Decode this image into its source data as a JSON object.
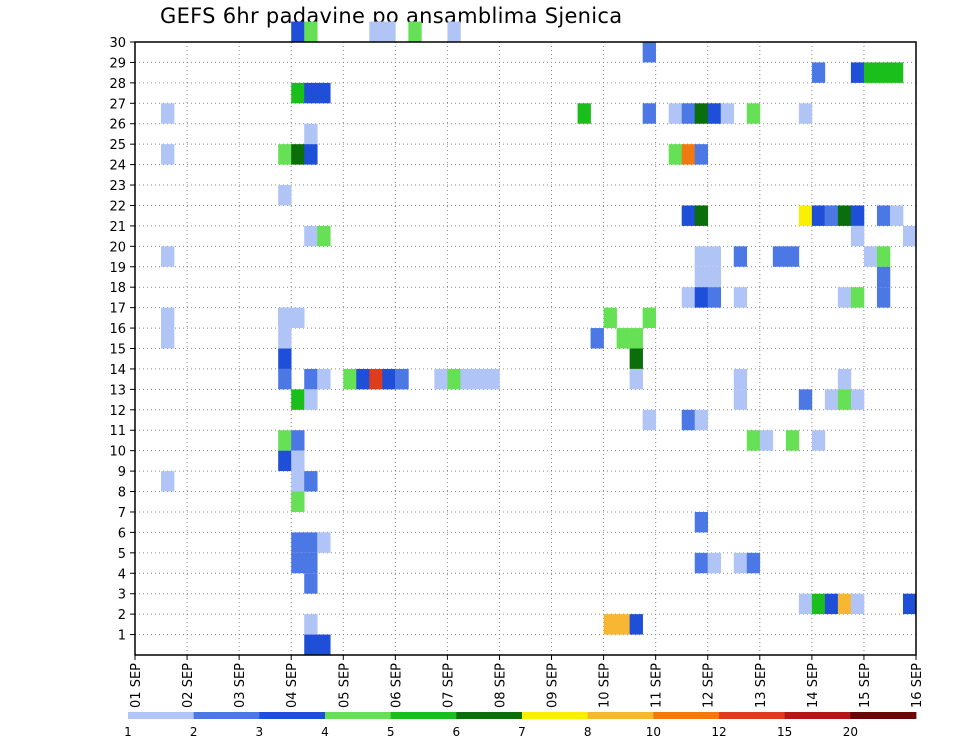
{
  "title": "GEFS 6hr padavine po ansamblima Sjenica",
  "chart_data": {
    "type": "heatmap",
    "title": "GEFS 6hr padavine po ansamblima Sjenica",
    "xlabel": "",
    "ylabel": "",
    "x_tick_labels": [
      "01 SEP",
      "02 SEP",
      "03 SEP",
      "04 SEP",
      "05 SEP",
      "06 SEP",
      "07 SEP",
      "08 SEP",
      "09 SEP",
      "10 SEP",
      "11 SEP",
      "12 SEP",
      "13 SEP",
      "14 SEP",
      "15 SEP",
      "16 SEP"
    ],
    "y_tick_labels": [
      "1",
      "2",
      "3",
      "4",
      "5",
      "6",
      "7",
      "8",
      "9",
      "10",
      "11",
      "12",
      "13",
      "14",
      "15",
      "16",
      "17",
      "18",
      "19",
      "20",
      "21",
      "22",
      "23",
      "24",
      "25",
      "26",
      "27",
      "28",
      "29",
      "30"
    ],
    "ylim": [
      0,
      30
    ],
    "grid": true,
    "time_step_hours": 6,
    "colorbar": {
      "labels": [
        "1",
        "2",
        "3",
        "4",
        "5",
        "6",
        "7",
        "8",
        "10",
        "12",
        "15",
        "20"
      ],
      "colors": [
        "#b0c4f5",
        "#4c78e6",
        "#1f4fd8",
        "#66e055",
        "#1bbf1b",
        "#0a6e0a",
        "#f8f000",
        "#f7b733",
        "#f07a10",
        "#dd3d1c",
        "#b21818",
        "#6a0606"
      ]
    },
    "cells": [
      {
        "member": 30,
        "day": 4,
        "step": 0,
        "c": 2
      },
      {
        "member": 30,
        "day": 4,
        "step": 1,
        "c": 3
      },
      {
        "member": 30,
        "day": 5,
        "step": 2,
        "c": 0
      },
      {
        "member": 30,
        "day": 5,
        "step": 3,
        "c": 0
      },
      {
        "member": 30,
        "day": 6,
        "step": 1,
        "c": 3
      },
      {
        "member": 30,
        "day": 7,
        "step": 0,
        "c": 0
      },
      {
        "member": 29,
        "day": 10,
        "step": 3,
        "c": 1
      },
      {
        "member": 28,
        "day": 14,
        "step": 3,
        "c": 0
      },
      {
        "member": 28,
        "day": 14,
        "step": 0,
        "c": 1
      },
      {
        "member": 28,
        "day": 14,
        "step": 3,
        "c": 2
      },
      {
        "member": 28,
        "day": 15,
        "step": 0,
        "c": 4
      },
      {
        "member": 28,
        "day": 15,
        "step": 1,
        "c": 4
      },
      {
        "member": 28,
        "day": 15,
        "step": 2,
        "c": 4
      },
      {
        "member": 27,
        "day": 4,
        "step": 0,
        "c": 4
      },
      {
        "member": 27,
        "day": 4,
        "step": 1,
        "c": 2
      },
      {
        "member": 27,
        "day": 4,
        "step": 2,
        "c": 2
      },
      {
        "member": 26,
        "day": 1,
        "step": 2,
        "c": 0
      },
      {
        "member": 26,
        "day": 9,
        "step": 2,
        "c": 4
      },
      {
        "member": 26,
        "day": 10,
        "step": 3,
        "c": 1
      },
      {
        "member": 26,
        "day": 11,
        "step": 1,
        "c": 0
      },
      {
        "member": 26,
        "day": 11,
        "step": 2,
        "c": 1
      },
      {
        "member": 26,
        "day": 11,
        "step": 3,
        "c": 5
      },
      {
        "member": 26,
        "day": 12,
        "step": 0,
        "c": 2
      },
      {
        "member": 26,
        "day": 12,
        "step": 1,
        "c": 0
      },
      {
        "member": 26,
        "day": 12,
        "step": 3,
        "c": 3
      },
      {
        "member": 26,
        "day": 13,
        "step": 3,
        "c": 0
      },
      {
        "member": 25,
        "day": 4,
        "step": 1,
        "c": 0
      },
      {
        "member": 24,
        "day": 1,
        "step": 2,
        "c": 0
      },
      {
        "member": 24,
        "day": 3,
        "step": 3,
        "c": 3
      },
      {
        "member": 24,
        "day": 4,
        "step": 0,
        "c": 5
      },
      {
        "member": 24,
        "day": 4,
        "step": 1,
        "c": 2
      },
      {
        "member": 24,
        "day": 11,
        "step": 1,
        "c": 3
      },
      {
        "member": 24,
        "day": 11,
        "step": 2,
        "c": 8
      },
      {
        "member": 24,
        "day": 11,
        "step": 3,
        "c": 1
      },
      {
        "member": 22,
        "day": 3,
        "step": 3,
        "c": 0
      },
      {
        "member": 21,
        "day": 11,
        "step": 2,
        "c": 2
      },
      {
        "member": 21,
        "day": 11,
        "step": 3,
        "c": 5
      },
      {
        "member": 21,
        "day": 13,
        "step": 3,
        "c": 6
      },
      {
        "member": 21,
        "day": 14,
        "step": 0,
        "c": 2
      },
      {
        "member": 21,
        "day": 14,
        "step": 1,
        "c": 0
      },
      {
        "member": 21,
        "day": 14,
        "step": 1,
        "c": 1
      },
      {
        "member": 21,
        "day": 14,
        "step": 2,
        "c": 5
      },
      {
        "member": 21,
        "day": 14,
        "step": 3,
        "c": 2
      },
      {
        "member": 21,
        "day": 15,
        "step": 1,
        "c": 1
      },
      {
        "member": 21,
        "day": 15,
        "step": 2,
        "c": 0
      },
      {
        "member": 20,
        "day": 4,
        "step": 1,
        "c": 0
      },
      {
        "member": 20,
        "day": 4,
        "step": 2,
        "c": 3
      },
      {
        "member": 20,
        "day": 14,
        "step": 3,
        "c": 0
      },
      {
        "member": 20,
        "day": 15,
        "step": 3,
        "c": 0
      },
      {
        "member": 19,
        "day": 1,
        "step": 2,
        "c": 0
      },
      {
        "member": 19,
        "day": 11,
        "step": 3,
        "c": 0
      },
      {
        "member": 19,
        "day": 12,
        "step": 0,
        "c": 0
      },
      {
        "member": 19,
        "day": 12,
        "step": 2,
        "c": 1
      },
      {
        "member": 19,
        "day": 13,
        "step": 1,
        "c": 1
      },
      {
        "member": 19,
        "day": 13,
        "step": 2,
        "c": 1
      },
      {
        "member": 19,
        "day": 15,
        "step": 0,
        "c": 0
      },
      {
        "member": 19,
        "day": 15,
        "step": 1,
        "c": 3
      },
      {
        "member": 18,
        "day": 11,
        "step": 3,
        "c": 0
      },
      {
        "member": 18,
        "day": 12,
        "step": 0,
        "c": 0
      },
      {
        "member": 18,
        "day": 15,
        "step": 1,
        "c": 1
      },
      {
        "member": 17,
        "day": 11,
        "step": 2,
        "c": 0
      },
      {
        "member": 17,
        "day": 11,
        "step": 3,
        "c": 2
      },
      {
        "member": 17,
        "day": 12,
        "step": 0,
        "c": 1
      },
      {
        "member": 17,
        "day": 12,
        "step": 2,
        "c": 0
      },
      {
        "member": 17,
        "day": 14,
        "step": 2,
        "c": 0
      },
      {
        "member": 17,
        "day": 14,
        "step": 3,
        "c": 3
      },
      {
        "member": 17,
        "day": 15,
        "step": 1,
        "c": 1
      },
      {
        "member": 16,
        "day": 1,
        "step": 2,
        "c": 0
      },
      {
        "member": 16,
        "day": 3,
        "step": 3,
        "c": 3
      },
      {
        "member": 16,
        "day": 4,
        "step": 0,
        "c": 0
      },
      {
        "member": 16,
        "day": 3,
        "step": 3,
        "c": 0
      },
      {
        "member": 16,
        "day": 10,
        "step": 3,
        "c": 3
      },
      {
        "member": 16,
        "day": 10,
        "step": 0,
        "c": 3
      },
      {
        "member": 15,
        "day": 1,
        "step": 2,
        "c": 0
      },
      {
        "member": 15,
        "day": 3,
        "step": 3,
        "c": 0
      },
      {
        "member": 15,
        "day": 9,
        "step": 3,
        "c": 1
      },
      {
        "member": 15,
        "day": 10,
        "step": 1,
        "c": 3
      },
      {
        "member": 15,
        "day": 10,
        "step": 2,
        "c": 3
      },
      {
        "member": 14,
        "day": 3,
        "step": 3,
        "c": 2
      },
      {
        "member": 14,
        "day": 10,
        "step": 2,
        "c": 5
      },
      {
        "member": 13,
        "day": 3,
        "step": 3,
        "c": 1
      },
      {
        "member": 13,
        "day": 4,
        "step": 1,
        "c": 1
      },
      {
        "member": 13,
        "day": 4,
        "step": 2,
        "c": 0
      },
      {
        "member": 13,
        "day": 5,
        "step": 0,
        "c": 3
      },
      {
        "member": 13,
        "day": 5,
        "step": 1,
        "c": 2
      },
      {
        "member": 13,
        "day": 5,
        "step": 2,
        "c": 9
      },
      {
        "member": 13,
        "day": 5,
        "step": 3,
        "c": 2
      },
      {
        "member": 13,
        "day": 6,
        "step": 0,
        "c": 0
      },
      {
        "member": 13,
        "day": 6,
        "step": 0,
        "c": 1
      },
      {
        "member": 13,
        "day": 6,
        "step": 3,
        "c": 0
      },
      {
        "member": 13,
        "day": 7,
        "step": 0,
        "c": 3
      },
      {
        "member": 13,
        "day": 7,
        "step": 1,
        "c": 0
      },
      {
        "member": 13,
        "day": 7,
        "step": 2,
        "c": 0
      },
      {
        "member": 13,
        "day": 7,
        "step": 3,
        "c": 0
      },
      {
        "member": 13,
        "day": 10,
        "step": 2,
        "c": 0
      },
      {
        "member": 13,
        "day": 12,
        "step": 2,
        "c": 0
      },
      {
        "member": 13,
        "day": 14,
        "step": 2,
        "c": 0
      },
      {
        "member": 12,
        "day": 4,
        "step": 0,
        "c": 4
      },
      {
        "member": 12,
        "day": 4,
        "step": 1,
        "c": 0
      },
      {
        "member": 12,
        "day": 12,
        "step": 2,
        "c": 0
      },
      {
        "member": 12,
        "day": 13,
        "step": 3,
        "c": 1
      },
      {
        "member": 12,
        "day": 14,
        "step": 1,
        "c": 0
      },
      {
        "member": 12,
        "day": 14,
        "step": 2,
        "c": 3
      },
      {
        "member": 12,
        "day": 14,
        "step": 3,
        "c": 0
      },
      {
        "member": 11,
        "day": 10,
        "step": 3,
        "c": 0
      },
      {
        "member": 11,
        "day": 11,
        "step": 2,
        "c": 1
      },
      {
        "member": 11,
        "day": 11,
        "step": 3,
        "c": 0
      },
      {
        "member": 10,
        "day": 3,
        "step": 3,
        "c": 3
      },
      {
        "member": 10,
        "day": 4,
        "step": 0,
        "c": 1
      },
      {
        "member": 10,
        "day": 12,
        "step": 3,
        "c": 3
      },
      {
        "member": 10,
        "day": 13,
        "step": 0,
        "c": 0
      },
      {
        "member": 10,
        "day": 13,
        "step": 2,
        "c": 3
      },
      {
        "member": 10,
        "day": 14,
        "step": 0,
        "c": 0
      },
      {
        "member": 9,
        "day": 3,
        "step": 3,
        "c": 2
      },
      {
        "member": 9,
        "day": 4,
        "step": 0,
        "c": 0
      },
      {
        "member": 8,
        "day": 1,
        "step": 2,
        "c": 0
      },
      {
        "member": 8,
        "day": 4,
        "step": 0,
        "c": 0
      },
      {
        "member": 8,
        "day": 4,
        "step": 1,
        "c": 1
      },
      {
        "member": 7,
        "day": 4,
        "step": 0,
        "c": 3
      },
      {
        "member": 6,
        "day": 11,
        "step": 3,
        "c": 1
      },
      {
        "member": 5,
        "day": 4,
        "step": 0,
        "c": 1
      },
      {
        "member": 5,
        "day": 4,
        "step": 1,
        "c": 1
      },
      {
        "member": 5,
        "day": 4,
        "step": 2,
        "c": 0
      },
      {
        "member": 4,
        "day": 4,
        "step": 0,
        "c": 1
      },
      {
        "member": 4,
        "day": 4,
        "step": 1,
        "c": 1
      },
      {
        "member": 4,
        "day": 11,
        "step": 3,
        "c": 1
      },
      {
        "member": 4,
        "day": 12,
        "step": 0,
        "c": 0
      },
      {
        "member": 4,
        "day": 12,
        "step": 2,
        "c": 0
      },
      {
        "member": 4,
        "day": 12,
        "step": 3,
        "c": 1
      },
      {
        "member": 3,
        "day": 4,
        "step": 1,
        "c": 1
      },
      {
        "member": 2,
        "day": 13,
        "step": 3,
        "c": 0
      },
      {
        "member": 2,
        "day": 14,
        "step": 0,
        "c": 4
      },
      {
        "member": 2,
        "day": 14,
        "step": 1,
        "c": 2
      },
      {
        "member": 2,
        "day": 14,
        "step": 2,
        "c": 7
      },
      {
        "member": 2,
        "day": 14,
        "step": 3,
        "c": 0
      },
      {
        "member": 2,
        "day": 15,
        "step": 3,
        "c": 2
      },
      {
        "member": 1,
        "day": 4,
        "step": 1,
        "c": 0
      },
      {
        "member": 1,
        "day": 10,
        "step": 0,
        "c": 7
      },
      {
        "member": 1,
        "day": 10,
        "step": 1,
        "c": 7
      },
      {
        "member": 1,
        "day": 10,
        "step": 2,
        "c": 2
      },
      {
        "member": 0,
        "day": 4,
        "step": 1,
        "c": 2
      },
      {
        "member": 0,
        "day": 4,
        "step": 2,
        "c": 2
      }
    ]
  }
}
